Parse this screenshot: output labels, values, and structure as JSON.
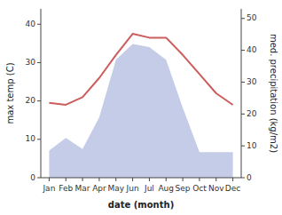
{
  "chart_data": {
    "type": "line",
    "xlabel": "date (month)",
    "ylabel": "max temp (C)",
    "y2label": "med. precipitation (kg/m2)",
    "categories": [
      "Jan",
      "Feb",
      "Mar",
      "Apr",
      "May",
      "Jun",
      "Jul",
      "Aug",
      "Sep",
      "Oct",
      "Nov",
      "Dec"
    ],
    "series": [
      {
        "type": "area",
        "axis": "y2",
        "color": "#c5cce8",
        "values": [
          8.5,
          12.5,
          9.0,
          19.0,
          37.0,
          42.0,
          41.0,
          37.0,
          22.0,
          8.0,
          8.0,
          8.0
        ]
      },
      {
        "type": "line",
        "color": "#cd5c5c",
        "values": [
          19.5,
          19.0,
          21.0,
          26.0,
          32.0,
          37.5,
          36.5,
          36.5,
          32.0,
          27.0,
          22.0,
          19.0
        ]
      }
    ],
    "ylim": [
      0,
      44
    ],
    "yticks": [
      0,
      10,
      20,
      30,
      40
    ],
    "y2lim": [
      0,
      53
    ],
    "y2ticks": [
      0,
      10,
      20,
      30,
      40,
      50
    ],
    "grid": false
  }
}
